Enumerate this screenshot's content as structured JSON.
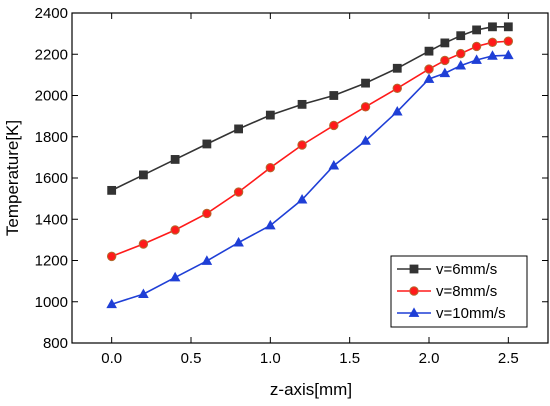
{
  "chart_data": {
    "type": "line",
    "title": "",
    "xlabel": "z-axis[mm]",
    "ylabel": "Temperature[K]",
    "xlim": [
      -0.25,
      2.75
    ],
    "ylim": [
      800,
      2400
    ],
    "xticks": [
      0.0,
      0.5,
      1.0,
      1.5,
      2.0,
      2.5
    ],
    "xtick_labels": [
      "0.0",
      "0.5",
      "1.0",
      "1.5",
      "2.0",
      "2.5"
    ],
    "yticks": [
      800,
      1000,
      1200,
      1400,
      1600,
      1800,
      2000,
      2200,
      2400
    ],
    "ytick_labels": [
      "800",
      "1000",
      "1200",
      "1400",
      "1600",
      "1800",
      "2000",
      "2200",
      "2400"
    ],
    "grid": false,
    "legend_position": "bottom-right",
    "x": [
      0.0,
      0.2,
      0.4,
      0.6,
      0.8,
      1.0,
      1.2,
      1.4,
      1.6,
      1.8,
      2.0,
      2.1,
      2.2,
      2.3,
      2.4,
      2.5
    ],
    "series": [
      {
        "name": "v=6mm/s",
        "color": "#333333",
        "marker": "square",
        "values": [
          1540,
          1615,
          1690,
          1765,
          1838,
          1905,
          1957,
          2000,
          2060,
          2132,
          2215,
          2255,
          2290,
          2318,
          2333,
          2333
        ]
      },
      {
        "name": "v=8mm/s",
        "color": "#ff1a1a",
        "marker": "circle",
        "values": [
          1220,
          1280,
          1348,
          1428,
          1532,
          1650,
          1760,
          1855,
          1945,
          2035,
          2128,
          2170,
          2203,
          2238,
          2258,
          2263
        ]
      },
      {
        "name": "v=10mm/s",
        "color": "#1f3fd6",
        "marker": "triangle",
        "values": [
          988,
          1037,
          1118,
          1198,
          1287,
          1370,
          1495,
          1660,
          1780,
          1922,
          2080,
          2108,
          2145,
          2172,
          2192,
          2195
        ]
      }
    ]
  }
}
